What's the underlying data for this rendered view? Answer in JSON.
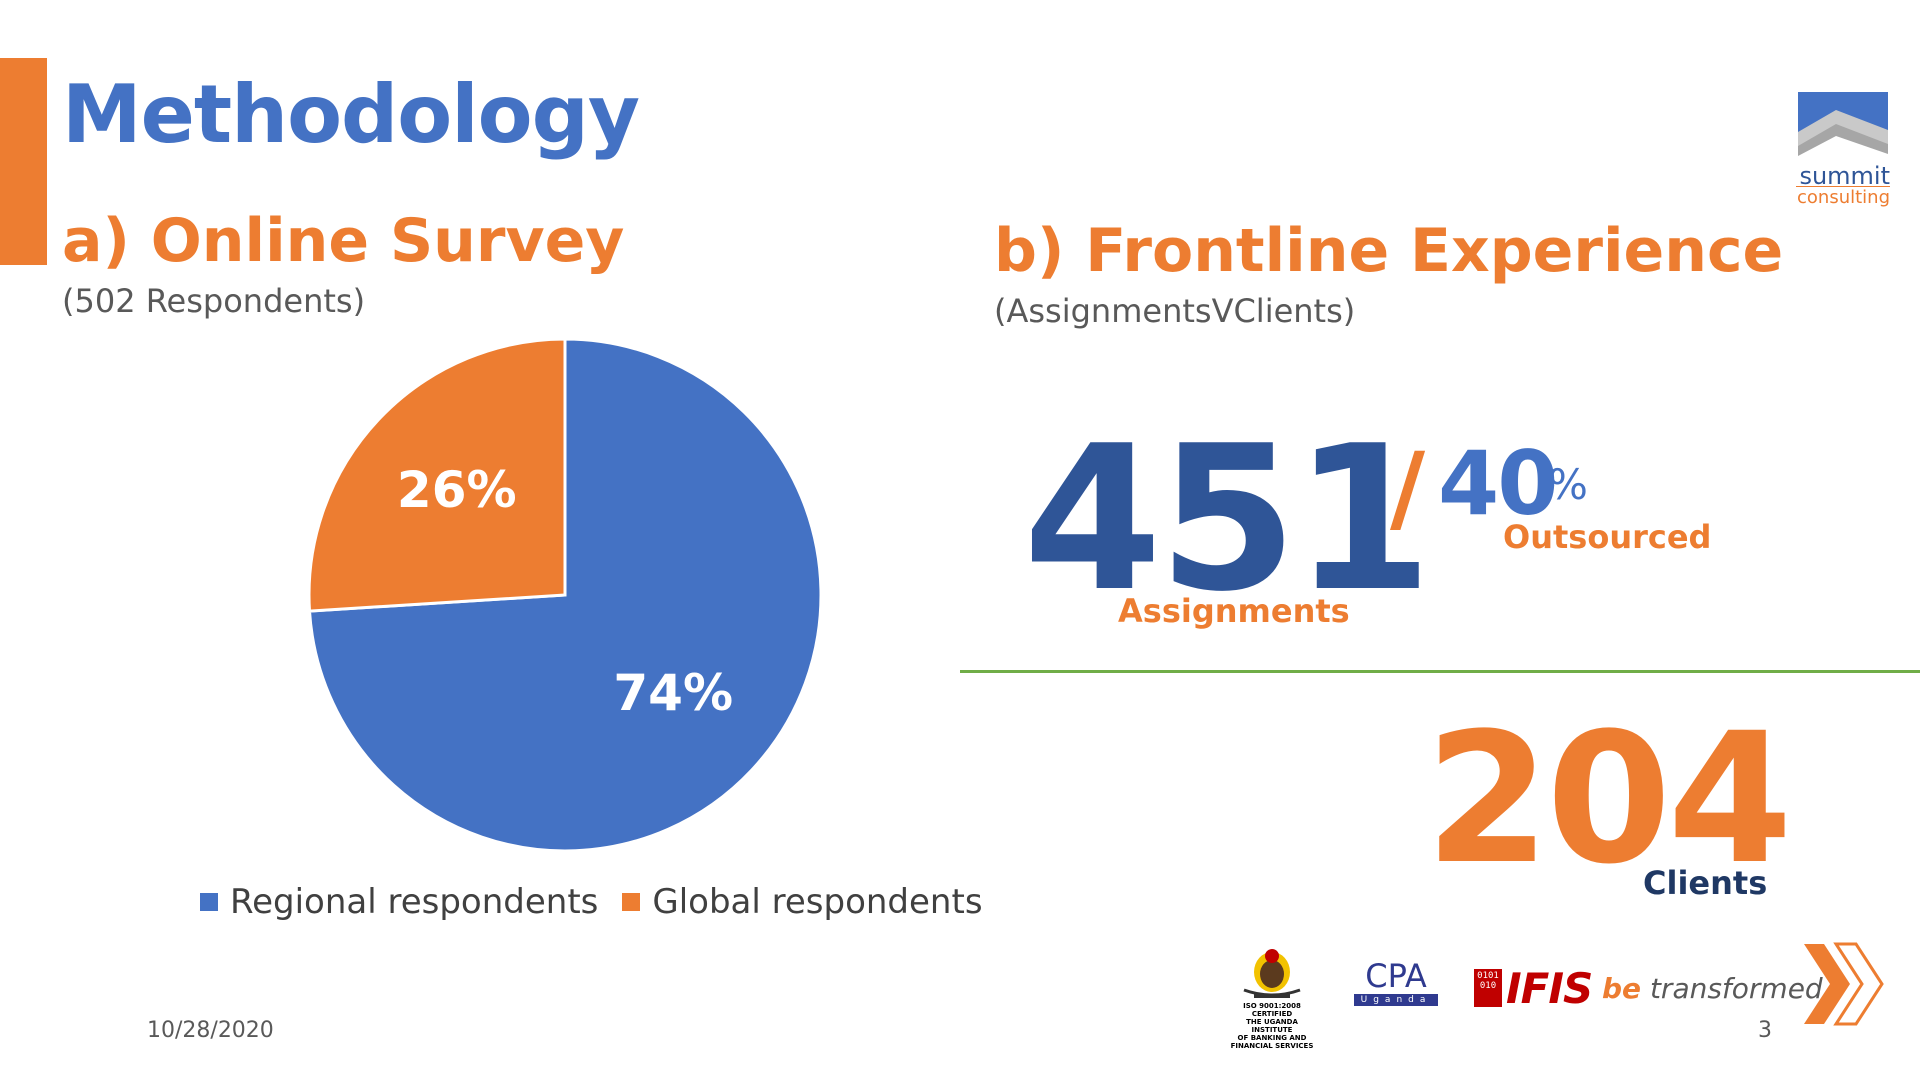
{
  "slide": {
    "title": "Methodology",
    "section_a": {
      "title": "a) Online Survey",
      "subtitle": "(502 Respondents)"
    },
    "section_b": {
      "title": "b) Frontline Experience",
      "subtitle": "(AssignmentsVClients)"
    },
    "stats": {
      "assignments_value": "451",
      "assignments_label": "Assignments",
      "slash": "/",
      "outsourced_value": "40",
      "outsourced_pct": "%",
      "outsourced_label": "Outsourced",
      "clients_value": "204",
      "clients_label": "Clients"
    },
    "footer": {
      "date": "10/28/2020",
      "page": "3"
    },
    "logos": {
      "summit_word": "summit",
      "consulting_word": "consulting",
      "uibfs_lines": [
        "ISO 9001:2008 CERTIFIED",
        "THE UGANDA INSTITUTE",
        "OF BANKING AND",
        "FINANCIAL SERVICES"
      ],
      "cpa_word": "CPA",
      "cpa_country": "Uganda",
      "ifis_bin_top": "0101",
      "ifis_bin_bottom": "010",
      "ifis_word": "IFIS",
      "tagline_be": "be",
      "tagline_rest": " transformed"
    },
    "colors": {
      "accent": "#ED7D31",
      "primary": "#4472C4",
      "navy": "#2F5597",
      "dark_navy": "#1F3864",
      "divider": "#70AD47"
    }
  },
  "chart_data": {
    "type": "pie",
    "labels": [
      "Regional respondents",
      "Global respondents"
    ],
    "values": [
      74,
      26
    ],
    "data_labels": [
      "74%",
      "26%"
    ],
    "colors": [
      "#4472C4",
      "#ED7D31"
    ],
    "legend_position": "bottom",
    "title": "",
    "start_angle": "12 o'clock, clockwise"
  }
}
